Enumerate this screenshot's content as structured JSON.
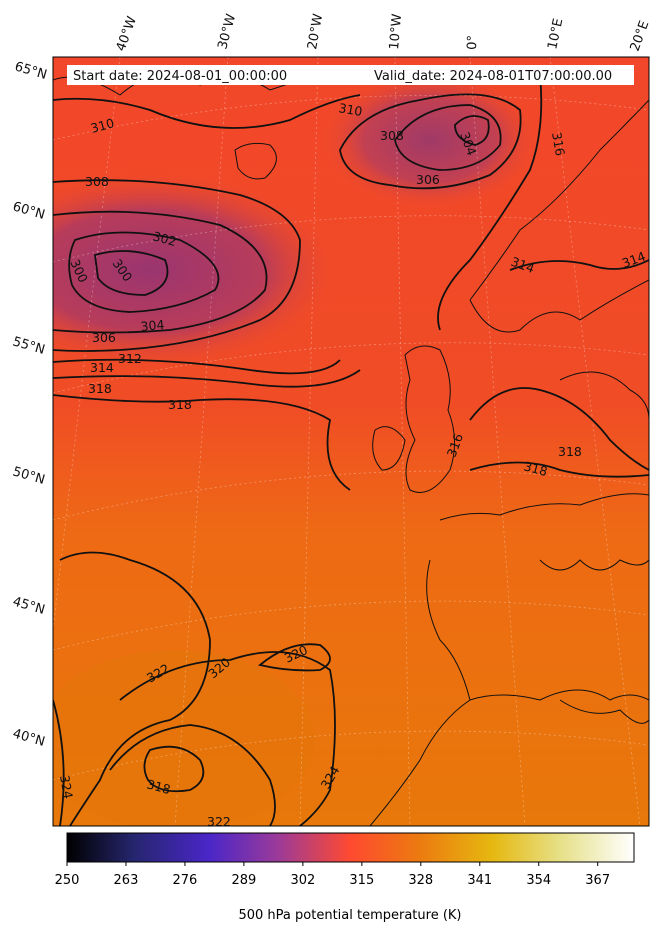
{
  "header": {
    "start_date": "Start date: 2024-08-01_00:00:00",
    "valid_date": "Valid_date: 2024-08-01T07:00:00.00"
  },
  "map": {
    "variable": "500 hPa potential temperature",
    "unit": "K",
    "projection": "polar stereographic (rotated lat/lon grid)",
    "lat_labels": [
      "65°N",
      "60°N",
      "55°N",
      "50°N",
      "45°N",
      "40°N"
    ],
    "lon_labels": [
      "40°W",
      "30°W",
      "20°W",
      "10°W",
      "0°",
      "10°E",
      "20°E"
    ],
    "contour_labels": [
      {
        "value": "310"
      },
      {
        "value": "310"
      },
      {
        "value": "308"
      },
      {
        "value": "308"
      },
      {
        "value": "304"
      },
      {
        "value": "306"
      },
      {
        "value": "316"
      },
      {
        "value": "302"
      },
      {
        "value": "300"
      },
      {
        "value": "300"
      },
      {
        "value": "314"
      },
      {
        "value": "314"
      },
      {
        "value": "306"
      },
      {
        "value": "304"
      },
      {
        "value": "312"
      },
      {
        "value": "314"
      },
      {
        "value": "318"
      },
      {
        "value": "318"
      },
      {
        "value": "316"
      },
      {
        "value": "318"
      },
      {
        "value": "318"
      },
      {
        "value": "322"
      },
      {
        "value": "320"
      },
      {
        "value": "320"
      },
      {
        "value": "318"
      },
      {
        "value": "324"
      },
      {
        "value": "324"
      },
      {
        "value": "322"
      }
    ],
    "colors": {
      "cold_core": "#9a3a78",
      "mid": "#f04a2a",
      "warm": "#e8740a",
      "contour": "#111111"
    }
  },
  "colorbar": {
    "label": "500 hPa potential temperature (K)",
    "colormap": "CMRmap",
    "min": 250,
    "max": 375,
    "ticks": [
      "250",
      "263",
      "276",
      "289",
      "302",
      "315",
      "328",
      "341",
      "354",
      "367"
    ]
  }
}
